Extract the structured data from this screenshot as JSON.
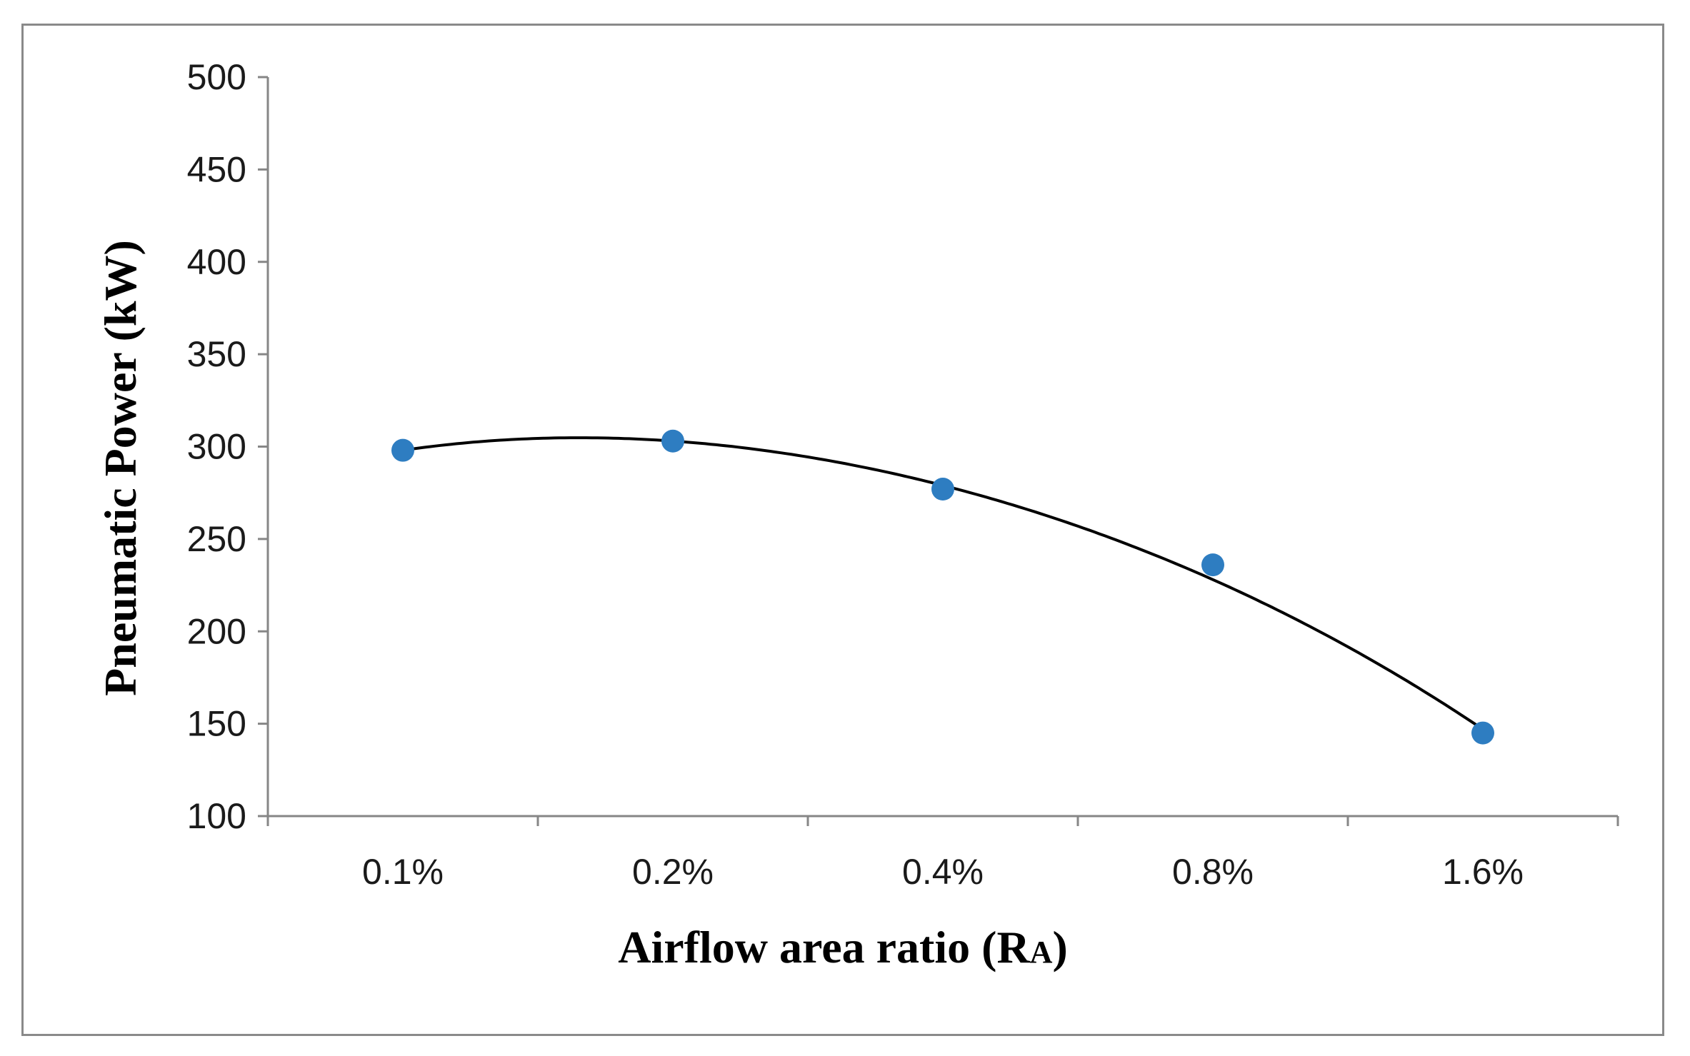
{
  "chart_data": {
    "type": "scatter",
    "title": "",
    "xlabel": "Airflow area ratio (R",
    "xlabel_subscript": "A",
    "xlabel_suffix": ")",
    "ylabel": "Pneumatic Power (kW)",
    "categories": [
      "0.1%",
      "0.2%",
      "0.4%",
      "0.8%",
      "1.6%"
    ],
    "ylim": [
      100,
      500
    ],
    "yticks": [
      100,
      150,
      200,
      250,
      300,
      350,
      400,
      450,
      500
    ],
    "series": [
      {
        "name": "Pneumatic Power",
        "values": [
          298,
          303,
          277,
          236,
          145
        ],
        "marker_color": "#2e7dc1"
      }
    ],
    "trendline": {
      "type": "polynomial",
      "color": "#000000",
      "values": [
        298,
        303,
        279,
        228,
        147
      ]
    },
    "grid": false,
    "legend": "none"
  }
}
